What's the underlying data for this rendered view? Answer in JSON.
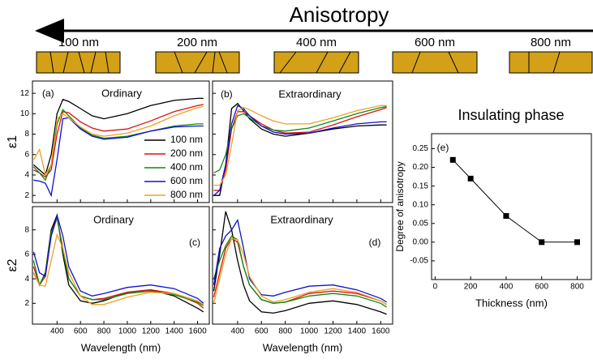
{
  "header": {
    "title": "Anisotropy",
    "grain_sizes": [
      "100 nm",
      "200 nm",
      "400 nm",
      "600 nm",
      "800 nm"
    ]
  },
  "chart_data": [
    {
      "type": "line",
      "panel_label": "(a)",
      "title": "Ordinary",
      "ylabel": "ε1",
      "legend": true,
      "xtick_labels": false,
      "ytick_labels": true,
      "xlim": [
        190,
        1700
      ],
      "ylim": [
        1.3,
        13.2
      ],
      "xticks": [
        400,
        600,
        800,
        1000,
        1200,
        1400,
        1600
      ],
      "yticks": [
        2,
        4,
        6,
        8,
        10,
        12
      ],
      "x": [
        200,
        250,
        300,
        350,
        400,
        450,
        500,
        600,
        700,
        800,
        1000,
        1200,
        1400,
        1600,
        1650
      ],
      "series": [
        {
          "name": "100 nm",
          "color": "#000000",
          "values": [
            5,
            4.5,
            4,
            6,
            10,
            11.4,
            11.2,
            10.5,
            9.8,
            9.5,
            10,
            10.8,
            11.3,
            11.5,
            11.5
          ]
        },
        {
          "name": "200 nm",
          "color": "#e01010",
          "values": [
            4.5,
            4.2,
            3.8,
            4.5,
            8,
            10.2,
            10.1,
            9.2,
            8.6,
            8.3,
            8.5,
            9.3,
            10.2,
            10.8,
            10.9
          ]
        },
        {
          "name": "400 nm",
          "color": "#108a10",
          "values": [
            4.8,
            4.2,
            3.5,
            5,
            9,
            10.4,
            9.8,
            8.6,
            7.9,
            7.6,
            7.8,
            8.3,
            8.8,
            9,
            9
          ]
        },
        {
          "name": "600 nm",
          "color": "#1010d0",
          "values": [
            3.5,
            3.4,
            3.2,
            2,
            5.5,
            9.5,
            9.6,
            8.5,
            7.8,
            7.5,
            7.7,
            8.3,
            8.7,
            8.8,
            8.8
          ]
        },
        {
          "name": "800 nm",
          "color": "#f0a020",
          "values": [
            5.5,
            6.5,
            4,
            5,
            9.5,
            10,
            9.6,
            8.7,
            8,
            7.8,
            8.1,
            8.8,
            9.8,
            10.6,
            10.7
          ]
        }
      ]
    },
    {
      "type": "line",
      "panel_label": "(b)",
      "title": "Extraordinary",
      "legend": false,
      "xtick_labels": false,
      "ytick_labels": false,
      "xlim": [
        190,
        1700
      ],
      "ylim": [
        1.3,
        13.2
      ],
      "xticks": [
        400,
        600,
        800,
        1000,
        1200,
        1400,
        1600
      ],
      "yticks": [
        2,
        4,
        6,
        8,
        10,
        12
      ],
      "x": [
        200,
        250,
        300,
        350,
        400,
        450,
        500,
        600,
        700,
        800,
        1000,
        1200,
        1400,
        1600,
        1650
      ],
      "series": [
        {
          "name": "100 nm",
          "color": "#000000",
          "values": [
            2,
            2,
            5,
            10.5,
            11,
            10.3,
            9.5,
            8.5,
            8,
            7.8,
            8.1,
            8.5,
            8.8,
            8.9,
            8.9
          ]
        },
        {
          "name": "200 nm",
          "color": "#e01010",
          "values": [
            2.5,
            2.5,
            4.5,
            8.5,
            10.2,
            10.2,
            9.8,
            9,
            8.4,
            8.1,
            8.2,
            8.9,
            9.7,
            10.4,
            10.6
          ]
        },
        {
          "name": "400 nm",
          "color": "#108a10",
          "values": [
            4.2,
            4.5,
            6,
            8.5,
            9.8,
            10,
            9.6,
            8.8,
            8.4,
            8.3,
            8.6,
            9.3,
            10,
            10.6,
            10.7
          ]
        },
        {
          "name": "600 nm",
          "color": "#1010d0",
          "values": [
            2,
            2.5,
            5,
            9,
            10.8,
            10.5,
            9.8,
            8.8,
            8.2,
            8,
            8.1,
            8.6,
            9,
            9.2,
            9.2
          ]
        },
        {
          "name": "800 nm",
          "color": "#f0a020",
          "values": [
            3,
            3,
            4,
            7,
            10.3,
            10.6,
            10.4,
            9.8,
            9.3,
            9,
            9,
            9.6,
            10.3,
            10.8,
            10.8
          ]
        }
      ]
    },
    {
      "type": "line",
      "panel_label": "(c)",
      "title": "Ordinary",
      "ylabel": "ε2",
      "xlabel": "Wavelength (nm)",
      "legend": false,
      "xtick_labels": true,
      "ytick_labels": true,
      "xlim": [
        190,
        1700
      ],
      "ylim": [
        0.3,
        9.9
      ],
      "xticks": [
        400,
        600,
        800,
        1000,
        1200,
        1400,
        1600
      ],
      "yticks": [
        2,
        4,
        6,
        8
      ],
      "x": [
        200,
        250,
        300,
        350,
        400,
        450,
        500,
        600,
        700,
        800,
        1000,
        1200,
        1400,
        1600,
        1650
      ],
      "series": [
        {
          "name": "100 nm",
          "color": "#000000",
          "values": [
            4.5,
            3.5,
            4.5,
            8,
            9.2,
            6,
            3.5,
            2.2,
            2,
            2.2,
            2.9,
            3.1,
            2.6,
            1.6,
            1.3
          ]
        },
        {
          "name": "200 nm",
          "color": "#e01010",
          "values": [
            5,
            3.5,
            4.2,
            7.5,
            9,
            6.5,
            4,
            2.6,
            2.3,
            2.4,
            2.9,
            3.1,
            2.8,
            2,
            1.6
          ]
        },
        {
          "name": "400 nm",
          "color": "#108a10",
          "values": [
            5.5,
            3.5,
            4.4,
            7.8,
            9,
            6.3,
            4,
            2.6,
            2.3,
            2.3,
            2.8,
            3,
            2.7,
            2.1,
            1.8
          ]
        },
        {
          "name": "600 nm",
          "color": "#1010d0",
          "values": [
            6.2,
            4.5,
            4.2,
            7.5,
            9.2,
            7.5,
            5,
            3,
            2.6,
            2.8,
            3.3,
            3.5,
            3.2,
            2.4,
            2
          ]
        },
        {
          "name": "800 nm",
          "color": "#f0a020",
          "values": [
            4.5,
            3.5,
            3.4,
            5.5,
            7.6,
            6.5,
            4.5,
            2.6,
            1.9,
            1.9,
            2.5,
            2.9,
            2.8,
            2.2,
            1.9
          ]
        }
      ]
    },
    {
      "type": "line",
      "panel_label": "(d)",
      "title": "Extraordinary",
      "xlabel": "Wavelength (nm)",
      "legend": false,
      "xtick_labels": true,
      "ytick_labels": false,
      "xlim": [
        190,
        1700
      ],
      "ylim": [
        0.3,
        9.9
      ],
      "xticks": [
        400,
        600,
        800,
        1000,
        1200,
        1400,
        1600
      ],
      "yticks": [
        2,
        4,
        6,
        8
      ],
      "x": [
        200,
        250,
        300,
        350,
        400,
        450,
        500,
        600,
        700,
        800,
        1000,
        1200,
        1400,
        1600,
        1650
      ],
      "series": [
        {
          "name": "100 nm",
          "color": "#000000",
          "values": [
            3,
            6,
            9.5,
            8,
            5.5,
            3.5,
            2.2,
            1.3,
            1.2,
            1.4,
            2,
            2.2,
            1.9,
            1.3,
            1.1
          ]
        },
        {
          "name": "200 nm",
          "color": "#e01010",
          "values": [
            2.5,
            4.5,
            6.5,
            7.3,
            7,
            5,
            3.5,
            2.3,
            2,
            2.1,
            2.8,
            3,
            2.8,
            2.2,
            1.9
          ]
        },
        {
          "name": "400 nm",
          "color": "#108a10",
          "values": [
            4,
            5.5,
            6.7,
            7.5,
            7.2,
            5,
            3.5,
            2.3,
            2,
            2.1,
            2.6,
            2.8,
            2.6,
            2,
            1.7
          ]
        },
        {
          "name": "600 nm",
          "color": "#1010d0",
          "values": [
            3.5,
            6.5,
            7.5,
            8,
            8.8,
            6.5,
            4,
            2.7,
            2.6,
            2.9,
            3.4,
            3.5,
            3.1,
            2.4,
            2.1
          ]
        },
        {
          "name": "800 nm",
          "color": "#f0a020",
          "values": [
            2,
            4,
            6,
            7.3,
            7.2,
            6,
            4.2,
            2.6,
            2.1,
            2.3,
            2.9,
            3.2,
            2.9,
            2.2,
            1.9
          ]
        }
      ]
    },
    {
      "type": "scatter-line",
      "panel_label": "(e)",
      "title": "Insulating phase",
      "ylabel": "Degree of anisotropy",
      "xlabel": "Thickness (nm)",
      "xtick_labels": true,
      "ytick_labels": true,
      "xlim": [
        -20,
        880
      ],
      "ylim": [
        -0.1,
        0.29
      ],
      "xticks": [
        0,
        200,
        400,
        600,
        800
      ],
      "yticks": [
        -0.05,
        {
          "value": 0,
          "label": "0.00"
        },
        0.05,
        {
          "value": 0.1,
          "label": "0.10"
        },
        0.15,
        {
          "value": 0.2,
          "label": "0.20"
        },
        0.25
      ],
      "color": "#000000",
      "x": [
        100,
        200,
        400,
        600,
        800
      ],
      "values": [
        0.22,
        0.17,
        0.07,
        0,
        0
      ]
    }
  ]
}
